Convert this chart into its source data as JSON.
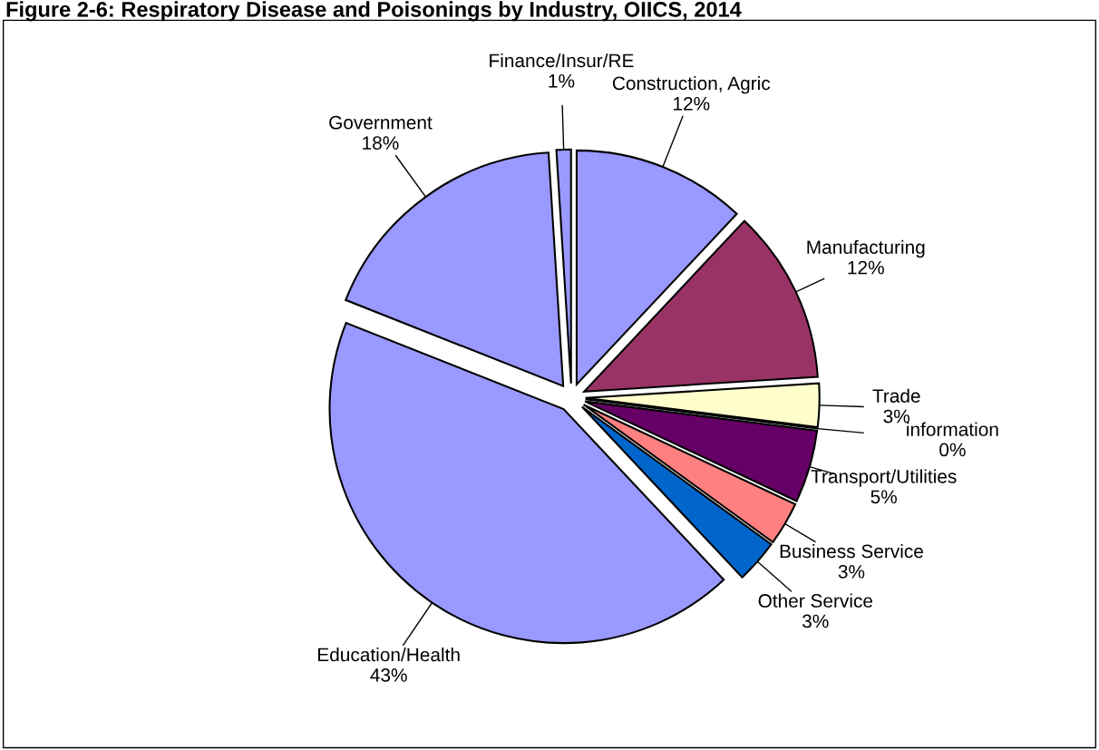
{
  "chart_data": {
    "type": "pie",
    "title": "Figure 2-6: Respiratory Disease and Poisonings by Industry, OIICS, 2014",
    "categories": [
      "Construction, Agric",
      "Manufacturing",
      "Trade",
      "information",
      "Transport/Utilities",
      "Business Service",
      "Other Service",
      "Education/Health",
      "Government",
      "Finance/Insur/RE"
    ],
    "values": [
      12,
      12,
      3,
      0,
      5,
      3,
      3,
      43,
      18,
      1
    ],
    "value_labels": [
      "12%",
      "12%",
      "3%",
      "0%",
      "5%",
      "3%",
      "3%",
      "43%",
      "18%",
      "1%"
    ],
    "colors": [
      "#9999ff",
      "#993366",
      "#ffffcc",
      "#ccffff",
      "#660066",
      "#ff8080",
      "#0066cc",
      "#9999ff",
      "#9999ff",
      "#9999ff"
    ]
  }
}
